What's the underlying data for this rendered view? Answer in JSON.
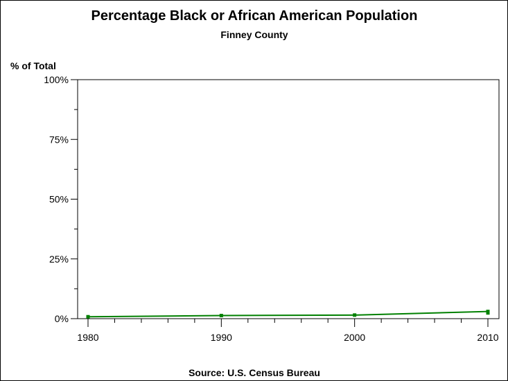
{
  "chart_data": {
    "type": "line",
    "title": "Percentage Black or African American Population",
    "subtitle": "Finney County",
    "ylabel": "% of Total",
    "xlabel": "",
    "footnote": "Source: U.S. Census Bureau",
    "xlim": [
      1980,
      2010
    ],
    "ylim": [
      0,
      100
    ],
    "x_ticks": [
      1980,
      1990,
      2000,
      2010
    ],
    "y_ticks": [
      "0%",
      "25%",
      "50%",
      "75%",
      "100%"
    ],
    "y_tick_values": [
      0,
      25,
      50,
      75,
      100
    ],
    "series": [
      {
        "name": "Finney County",
        "color": "#008000",
        "points": [
          [
            1980,
            0.8
          ],
          [
            1990,
            1.3
          ],
          [
            2000,
            1.5
          ],
          [
            2010,
            3.0
          ],
          [
            2010,
            2.4
          ]
        ]
      }
    ],
    "grid": false
  }
}
